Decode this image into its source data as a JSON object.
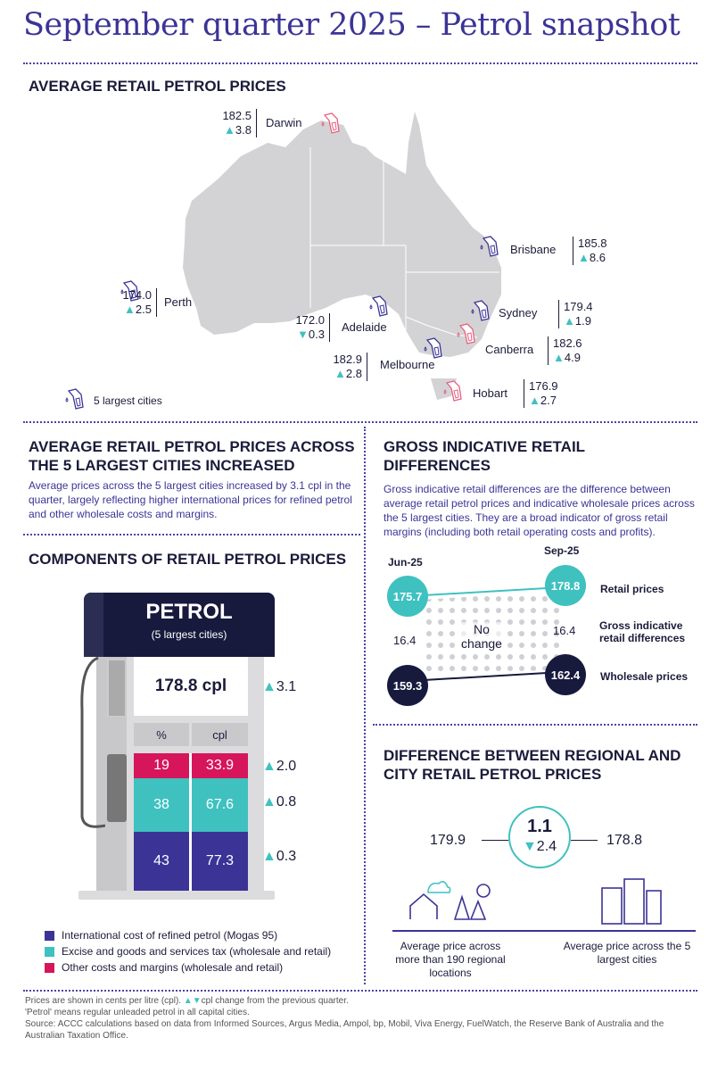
{
  "title": "September quarter 2025 – Petrol snapshot",
  "colors": {
    "purple": "#3b3496",
    "navy": "#171a3d",
    "teal": "#3fc1c0",
    "magenta": "#d6155a",
    "map": "#d3d3d5",
    "pink_icon": "#e8607f"
  },
  "map_section": {
    "heading": "AVERAGE RETAIL PETROL PRICES",
    "legend": "5 largest cities",
    "cities": [
      {
        "name": "Darwin",
        "price": "182.5",
        "change": "3.8",
        "direction": "up",
        "largest": false
      },
      {
        "name": "Brisbane",
        "price": "185.8",
        "change": "8.6",
        "direction": "up",
        "largest": true
      },
      {
        "name": "Perth",
        "price": "174.0",
        "change": "2.5",
        "direction": "up",
        "largest": true
      },
      {
        "name": "Adelaide",
        "price": "172.0",
        "change": "0.3",
        "direction": "down",
        "largest": true
      },
      {
        "name": "Sydney",
        "price": "179.4",
        "change": "1.9",
        "direction": "up",
        "largest": true
      },
      {
        "name": "Canberra",
        "price": "182.6",
        "change": "4.9",
        "direction": "up",
        "largest": false
      },
      {
        "name": "Melbourne",
        "price": "182.9",
        "change": "2.8",
        "direction": "up",
        "largest": true
      },
      {
        "name": "Hobart",
        "price": "176.9",
        "change": "2.7",
        "direction": "up",
        "largest": false
      }
    ]
  },
  "increase": {
    "heading": "AVERAGE RETAIL PETROL PRICES ACROSS THE 5 LARGEST CITIES INCREASED",
    "text": "Average prices across the 5 largest cities increased by 3.1 cpl in the quarter, largely reflecting higher international prices for refined petrol and other wholesale costs and margins."
  },
  "components": {
    "heading": "COMPONENTS OF RETAIL PETROL PRICES",
    "pump_title": "PETROL",
    "pump_subtitle": "(5 largest cities)",
    "total": "178.8 cpl",
    "total_change": "3.1",
    "col_pct": "%",
    "col_cpl": "cpl",
    "rows": [
      {
        "pct": "19",
        "cpl": "33.9",
        "change": "2.0",
        "color": "#d6155a"
      },
      {
        "pct": "38",
        "cpl": "67.6",
        "change": "0.8",
        "color": "#3fc1c0"
      },
      {
        "pct": "43",
        "cpl": "77.3",
        "change": "0.3",
        "color": "#3b3496"
      }
    ],
    "legend": [
      {
        "label": "International cost of refined petrol (Mogas 95)",
        "color": "#3b3496"
      },
      {
        "label": "Excise and goods and services tax (wholesale and retail)",
        "color": "#3fc1c0"
      },
      {
        "label": "Other costs and margins (wholesale and retail)",
        "color": "#d6155a"
      }
    ]
  },
  "gird": {
    "heading": "GROSS INDICATIVE RETAIL DIFFERENCES",
    "text": "Gross indicative retail differences are the difference between average retail petrol prices and indicative wholesale prices across the 5 largest cities. They are a broad indicator of gross retail margins (including both retail operating costs and profits).",
    "jun_label": "Jun-25",
    "sep_label": "Sep-25",
    "retail_jun": "175.7",
    "retail_sep": "178.8",
    "wholesale_jun": "159.3",
    "wholesale_sep": "162.4",
    "diff_jun": "16.4",
    "diff_sep": "16.4",
    "no_change": "No change",
    "retail_label": "Retail prices",
    "diff_label": "Gross indicative retail differences",
    "wholesale_label": "Wholesale prices"
  },
  "regional": {
    "heading": "DIFFERENCE BETWEEN REGIONAL AND CITY RETAIL PETROL PRICES",
    "regional_price": "179.9",
    "city_price": "178.8",
    "difference": "1.1",
    "difference_change": "2.4",
    "regional_caption": "Average price across more than 190 regional locations",
    "city_caption": "Average price across the 5 largest cities"
  },
  "footer": {
    "line1": "Prices are shown in cents per litre (cpl).",
    "line1b": "cpl change from the previous quarter.",
    "line2": "'Petrol' means regular unleaded petrol in all capital cities.",
    "line3": "Source: ACCC calculations based on data from Informed Sources, Argus Media, Ampol, bp, Mobil, Viva Energy, FuelWatch, the Reserve Bank of Australia and the Australian Taxation Office."
  }
}
